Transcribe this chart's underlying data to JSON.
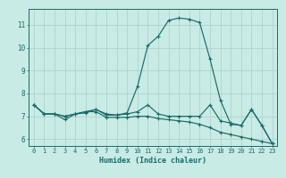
{
  "title": "",
  "xlabel": "Humidex (Indice chaleur)",
  "bg_color": "#c8ebe5",
  "line_color": "#1a6b6b",
  "grid_color": "#afd4cc",
  "xlim": [
    -0.5,
    23.5
  ],
  "ylim": [
    5.7,
    11.7
  ],
  "yticks": [
    6,
    7,
    8,
    9,
    10,
    11
  ],
  "xticks": [
    0,
    1,
    2,
    3,
    4,
    5,
    6,
    7,
    8,
    9,
    10,
    11,
    12,
    13,
    14,
    15,
    16,
    17,
    18,
    19,
    20,
    21,
    22,
    23
  ],
  "series": [
    [
      7.5,
      7.1,
      7.1,
      7.0,
      7.1,
      7.15,
      7.3,
      7.05,
      7.05,
      7.1,
      7.2,
      7.5,
      7.1,
      7.0,
      7.0,
      7.0,
      7.0,
      7.5,
      6.8,
      6.7,
      6.6,
      7.3,
      6.6,
      5.8
    ],
    [
      7.5,
      7.1,
      7.1,
      7.0,
      7.1,
      7.2,
      7.3,
      7.1,
      7.05,
      7.15,
      8.3,
      10.1,
      10.5,
      11.2,
      11.3,
      11.25,
      11.1,
      9.5,
      7.7,
      6.65,
      6.6,
      7.3,
      6.6,
      5.8
    ],
    [
      7.5,
      7.1,
      7.1,
      6.85,
      7.1,
      7.2,
      7.2,
      6.95,
      6.95,
      6.95,
      7.0,
      7.0,
      6.9,
      6.85,
      6.8,
      6.75,
      6.65,
      6.5,
      6.3,
      6.2,
      6.1,
      6.0,
      5.9,
      5.8
    ]
  ]
}
